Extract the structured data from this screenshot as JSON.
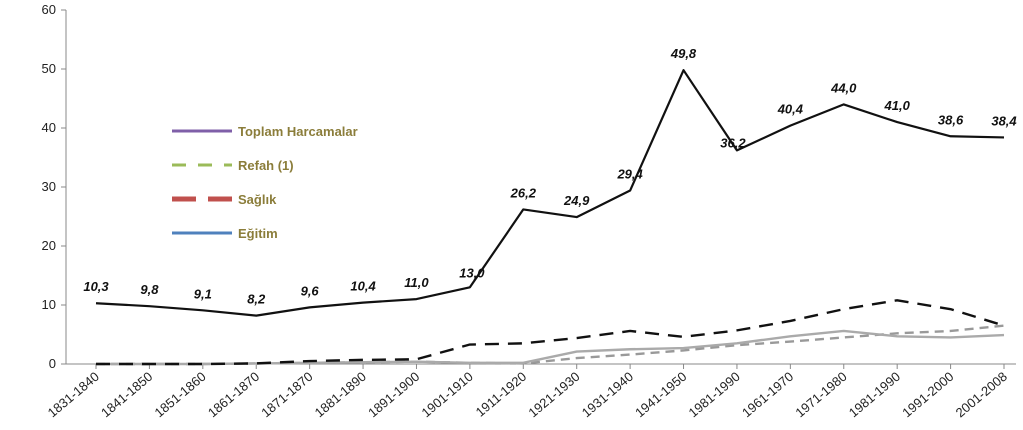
{
  "chart_data": {
    "type": "line",
    "title": "",
    "xlabel": "",
    "ylabel": "",
    "ylim": [
      0,
      60
    ],
    "yticks": [
      0,
      10,
      20,
      30,
      40,
      50,
      60
    ],
    "grid": false,
    "legend_position": "left",
    "categories": [
      "1831-1840",
      "1841-1850",
      "1851-1860",
      "1861-1870",
      "1871-1870",
      "1881-1890",
      "1891-1900",
      "1901-1910",
      "1911-1920",
      "1921-1930",
      "1931-1940",
      "1941-1950",
      "1981-1990",
      "1961-1970",
      "1971-1980",
      "1981-1990",
      "1991-2000",
      "2001-2008"
    ],
    "series": [
      {
        "name": "Toplam Harcamalar",
        "color": "#111111",
        "legend_color": "#7f5fa8",
        "dash": "solid",
        "values": [
          10.3,
          9.8,
          9.1,
          8.2,
          9.6,
          10.4,
          11.0,
          13.0,
          26.2,
          24.9,
          29.4,
          49.8,
          36.2,
          40.4,
          44.0,
          41.0,
          38.6,
          38.4
        ],
        "labels": [
          "10,3",
          "9,8",
          "9,1",
          "8,2",
          "9,6",
          "10,4",
          "11,0",
          "13,0",
          "26,2",
          "24,9",
          "29,4",
          "49,8",
          "36,2",
          "40,4",
          "44,0",
          "41,0",
          "38,6",
          "38,4"
        ]
      },
      {
        "name": "Refah (1)",
        "color": "#999999",
        "legend_color": "#9bbb59",
        "dash": "medium",
        "values": [
          0,
          0,
          0,
          0.1,
          0.2,
          0.3,
          0.4,
          0.2,
          0.1,
          1.0,
          1.6,
          2.3,
          3.2,
          3.8,
          4.5,
          5.2,
          5.6,
          6.5
        ]
      },
      {
        "name": "Sağlık",
        "color": "#111111",
        "legend_color": "#c0504d",
        "dash": "long",
        "values": [
          0,
          0,
          0,
          0.1,
          0.5,
          0.7,
          0.8,
          3.3,
          3.5,
          4.4,
          5.6,
          4.6,
          5.7,
          7.3,
          9.3,
          10.8,
          9.3,
          6.5
        ]
      },
      {
        "name": "Eğitim",
        "color": "#aaaaaa",
        "legend_color": "#4f81bd",
        "dash": "solid",
        "values": [
          0,
          0,
          0,
          0.1,
          0.2,
          0.3,
          0.4,
          0.2,
          0.2,
          2.1,
          2.5,
          2.7,
          3.5,
          4.7,
          5.6,
          4.7,
          4.5,
          4.9
        ]
      }
    ]
  }
}
